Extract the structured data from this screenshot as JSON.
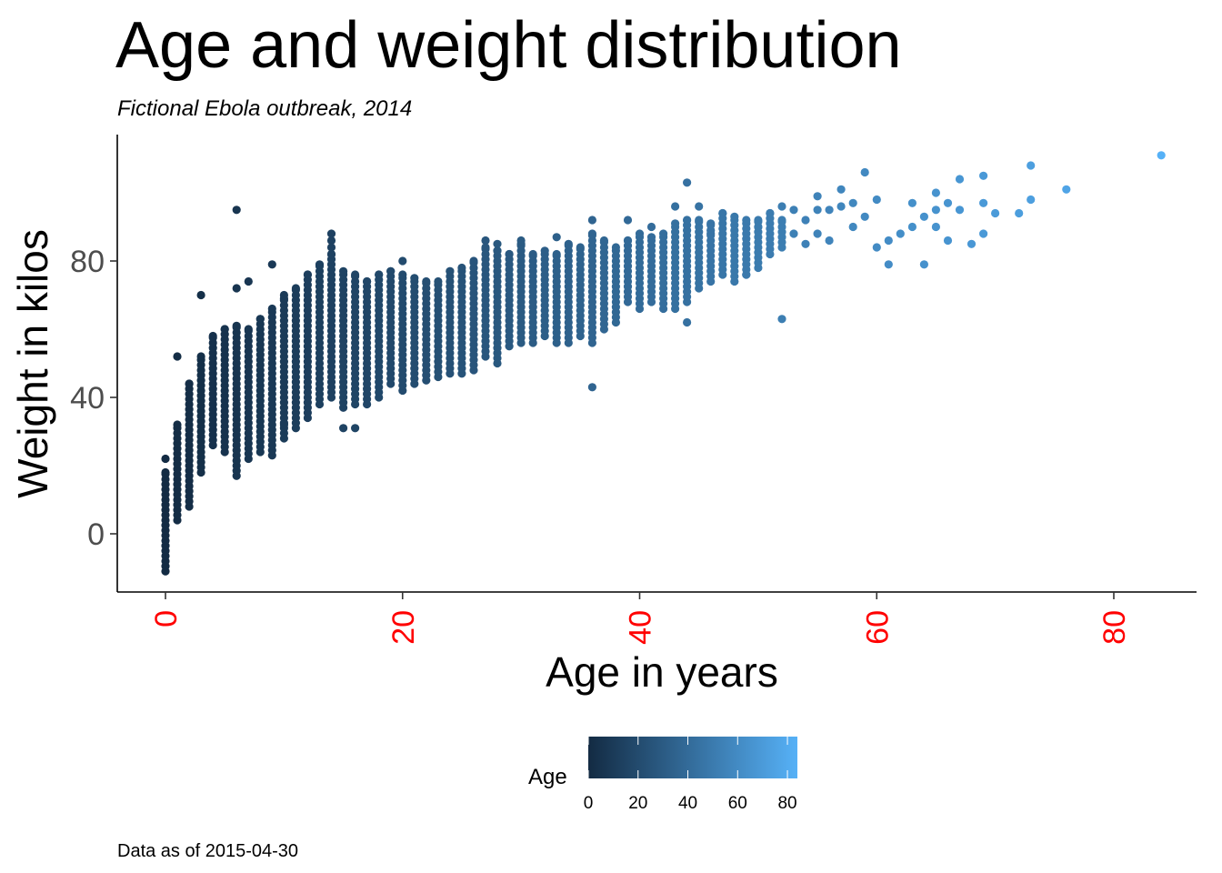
{
  "chart_data": {
    "type": "scatter",
    "title": "Age and weight distribution",
    "subtitle": "Fictional Ebola outbreak, 2014",
    "xlabel": "Age in years",
    "ylabel": "Weight in kilos",
    "caption": "Data as of 2015-04-30",
    "xlim": [
      -4,
      86
    ],
    "ylim": [
      -17,
      117
    ],
    "x_ticks": [
      0,
      20,
      40,
      60,
      80
    ],
    "x_tick_labels": [
      "0",
      "20",
      "40",
      "60",
      "80"
    ],
    "y_ticks": [
      0,
      40,
      80
    ],
    "y_tick_labels": [
      "0",
      "40",
      "80"
    ],
    "x_tick_color": "#ff0000",
    "grid": false,
    "legend": {
      "title": "Age",
      "position": "bottom",
      "ticks": [
        0,
        20,
        40,
        60,
        80
      ],
      "tick_labels": [
        "0",
        "20",
        "40",
        "60",
        "80"
      ],
      "range": [
        0,
        84
      ],
      "color_low": "#132b43",
      "color_high": "#56b1f7"
    },
    "ranges": [
      [
        0,
        -11,
        18
      ],
      [
        1,
        4,
        32
      ],
      [
        2,
        8,
        44
      ],
      [
        3,
        18,
        52
      ],
      [
        4,
        26,
        58
      ],
      [
        5,
        24,
        60
      ],
      [
        6,
        17,
        61
      ],
      [
        7,
        22,
        60
      ],
      [
        8,
        24,
        63
      ],
      [
        9,
        23,
        66
      ],
      [
        10,
        28,
        69
      ],
      [
        11,
        31,
        72
      ],
      [
        12,
        34,
        76
      ],
      [
        13,
        38,
        79
      ],
      [
        14,
        40,
        82
      ],
      [
        15,
        37,
        77
      ],
      [
        16,
        38,
        76
      ],
      [
        17,
        38,
        74
      ],
      [
        18,
        40,
        76
      ],
      [
        19,
        44,
        77
      ],
      [
        20,
        42,
        76
      ],
      [
        21,
        44,
        75
      ],
      [
        22,
        45,
        74
      ],
      [
        23,
        46,
        74
      ],
      [
        24,
        47,
        77
      ],
      [
        25,
        47,
        78
      ],
      [
        26,
        48,
        80
      ],
      [
        27,
        52,
        84
      ],
      [
        28,
        50,
        83
      ],
      [
        29,
        55,
        82
      ],
      [
        30,
        56,
        85
      ],
      [
        31,
        56,
        82
      ],
      [
        32,
        58,
        83
      ],
      [
        33,
        56,
        82
      ],
      [
        34,
        56,
        85
      ],
      [
        35,
        58,
        84
      ],
      [
        36,
        56,
        88
      ],
      [
        37,
        60,
        86
      ],
      [
        38,
        62,
        84
      ],
      [
        39,
        68,
        86
      ],
      [
        40,
        66,
        88
      ],
      [
        41,
        68,
        87
      ],
      [
        42,
        66,
        88
      ],
      [
        43,
        66,
        91
      ],
      [
        44,
        68,
        92
      ],
      [
        45,
        72,
        92
      ],
      [
        46,
        74,
        91
      ],
      [
        47,
        76,
        94
      ],
      [
        48,
        74,
        93
      ],
      [
        49,
        76,
        92
      ],
      [
        50,
        78,
        92
      ],
      [
        51,
        82,
        94
      ],
      [
        52,
        84,
        92
      ]
    ],
    "points": [
      [
        0,
        22
      ],
      [
        1,
        52
      ],
      [
        3,
        70
      ],
      [
        6,
        95
      ],
      [
        6,
        72
      ],
      [
        7,
        74
      ],
      [
        9,
        79
      ],
      [
        10,
        70
      ],
      [
        10,
        32
      ],
      [
        15,
        31
      ],
      [
        16,
        31
      ],
      [
        14,
        88
      ],
      [
        14,
        86
      ],
      [
        14,
        84
      ],
      [
        20,
        80
      ],
      [
        27,
        86
      ],
      [
        28,
        85
      ],
      [
        30,
        86
      ],
      [
        33,
        87
      ],
      [
        36,
        92
      ],
      [
        36,
        43
      ],
      [
        39,
        92
      ],
      [
        41,
        90
      ],
      [
        43,
        96
      ],
      [
        44,
        103
      ],
      [
        45,
        96
      ],
      [
        44,
        62
      ],
      [
        46,
        88
      ],
      [
        49,
        76
      ],
      [
        50,
        90
      ],
      [
        52,
        63
      ],
      [
        52,
        96
      ],
      [
        53,
        95
      ],
      [
        53,
        88
      ],
      [
        54,
        85
      ],
      [
        54,
        92
      ],
      [
        55,
        99
      ],
      [
        55,
        95
      ],
      [
        55,
        88
      ],
      [
        56,
        95
      ],
      [
        56,
        86
      ],
      [
        57,
        101
      ],
      [
        57,
        96
      ],
      [
        58,
        97
      ],
      [
        58,
        90
      ],
      [
        59,
        106
      ],
      [
        59,
        93
      ],
      [
        60,
        98
      ],
      [
        60,
        84
      ],
      [
        61,
        86
      ],
      [
        61,
        79
      ],
      [
        62,
        88
      ],
      [
        63,
        90
      ],
      [
        63,
        97
      ],
      [
        64,
        79
      ],
      [
        64,
        93
      ],
      [
        65,
        100
      ],
      [
        65,
        95
      ],
      [
        65,
        90
      ],
      [
        66,
        97
      ],
      [
        66,
        86
      ],
      [
        67,
        104
      ],
      [
        67,
        95
      ],
      [
        68,
        85
      ],
      [
        69,
        105
      ],
      [
        69,
        97
      ],
      [
        69,
        88
      ],
      [
        70,
        94
      ],
      [
        72,
        94
      ],
      [
        73,
        108
      ],
      [
        73,
        98
      ],
      [
        76,
        101
      ],
      [
        84,
        111
      ]
    ]
  }
}
